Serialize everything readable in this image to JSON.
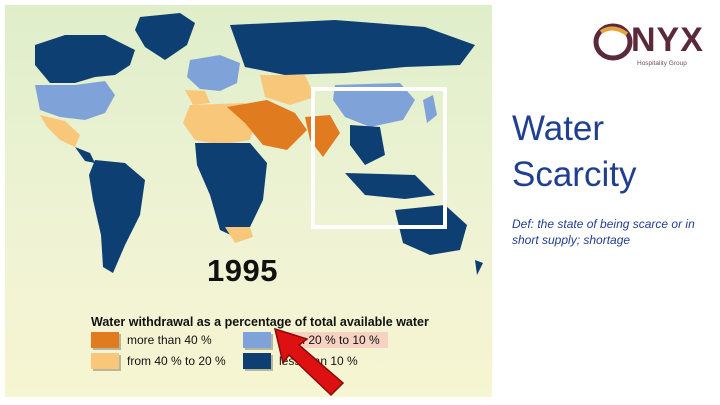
{
  "map": {
    "year": "1995",
    "legend_title": "Water withdrawal as a percentage of total available water",
    "legend": [
      {
        "label": "more than 40 %",
        "color": "#e07b1f"
      },
      {
        "label": "from 40 % to 20 %",
        "color": "#f9c77a"
      },
      {
        "label": "from 20 % to 10 %",
        "color": "#7fa3d8"
      },
      {
        "label": "less than 10 %",
        "color": "#0d3f73"
      }
    ],
    "colors": {
      "ocean": "#dfeeca",
      "highlight_box": "#ffffff",
      "arrow": "#dd1111"
    }
  },
  "logo": {
    "word": "ONYX",
    "tagline": "Hospitality Group"
  },
  "slide": {
    "title": "Water Scarcity",
    "definition": "Def: the state of being scarce or in short supply; shortage"
  }
}
